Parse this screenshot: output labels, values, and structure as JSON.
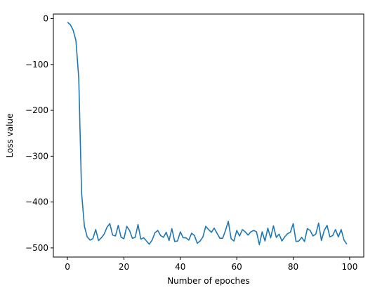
{
  "chart_data": {
    "type": "line",
    "title": "",
    "xlabel": "Number of epoches",
    "ylabel": "Loss value",
    "xlim": [
      -5,
      105
    ],
    "ylim": [
      -520,
      10
    ],
    "xticks": [
      0,
      20,
      40,
      60,
      80,
      100
    ],
    "yticks": [
      0,
      -100,
      -200,
      -300,
      -400,
      -500
    ],
    "xtick_labels": [
      "0",
      "20",
      "40",
      "60",
      "80",
      "100"
    ],
    "ytick_labels": [
      "0",
      "−100",
      "−200",
      "−300",
      "−400",
      "−500"
    ],
    "grid": false,
    "legend": "none",
    "series": [
      {
        "color": "#1f77b4",
        "x": [
          0,
          1,
          2,
          3,
          4,
          5,
          6,
          7,
          8,
          9,
          10,
          11,
          12,
          13,
          14,
          15,
          16,
          17,
          18,
          19,
          20,
          21,
          22,
          23,
          24,
          25,
          26,
          27,
          28,
          29,
          30,
          31,
          32,
          33,
          34,
          35,
          36,
          37,
          38,
          39,
          40,
          41,
          42,
          43,
          44,
          45,
          46,
          47,
          48,
          49,
          50,
          51,
          52,
          53,
          54,
          55,
          56,
          57,
          58,
          59,
          60,
          61,
          62,
          63,
          64,
          65,
          66,
          67,
          68,
          69,
          70,
          71,
          72,
          73,
          74,
          75,
          76,
          77,
          78,
          79,
          80,
          81,
          82,
          83,
          84,
          85,
          86,
          87,
          88,
          89,
          90,
          91,
          92,
          93,
          94,
          95,
          96,
          97,
          98,
          99
        ],
        "values": [
          -8,
          -13,
          -25,
          -48,
          -130,
          -380,
          -453,
          -476,
          -483,
          -480,
          -460,
          -484,
          -478,
          -470,
          -455,
          -447,
          -472,
          -474,
          -451,
          -477,
          -480,
          -453,
          -462,
          -479,
          -477,
          -449,
          -481,
          -478,
          -485,
          -492,
          -483,
          -467,
          -462,
          -473,
          -477,
          -466,
          -484,
          -458,
          -486,
          -485,
          -465,
          -478,
          -478,
          -483,
          -468,
          -473,
          -490,
          -485,
          -476,
          -453,
          -460,
          -466,
          -457,
          -468,
          -479,
          -479,
          -462,
          -442,
          -480,
          -485,
          -462,
          -474,
          -460,
          -465,
          -472,
          -465,
          -462,
          -465,
          -493,
          -465,
          -485,
          -457,
          -478,
          -452,
          -477,
          -470,
          -485,
          -476,
          -469,
          -466,
          -447,
          -486,
          -485,
          -477,
          -486,
          -458,
          -462,
          -474,
          -470,
          -446,
          -484,
          -462,
          -451,
          -476,
          -473,
          -460,
          -476,
          -460,
          -483,
          -492
        ]
      }
    ]
  }
}
